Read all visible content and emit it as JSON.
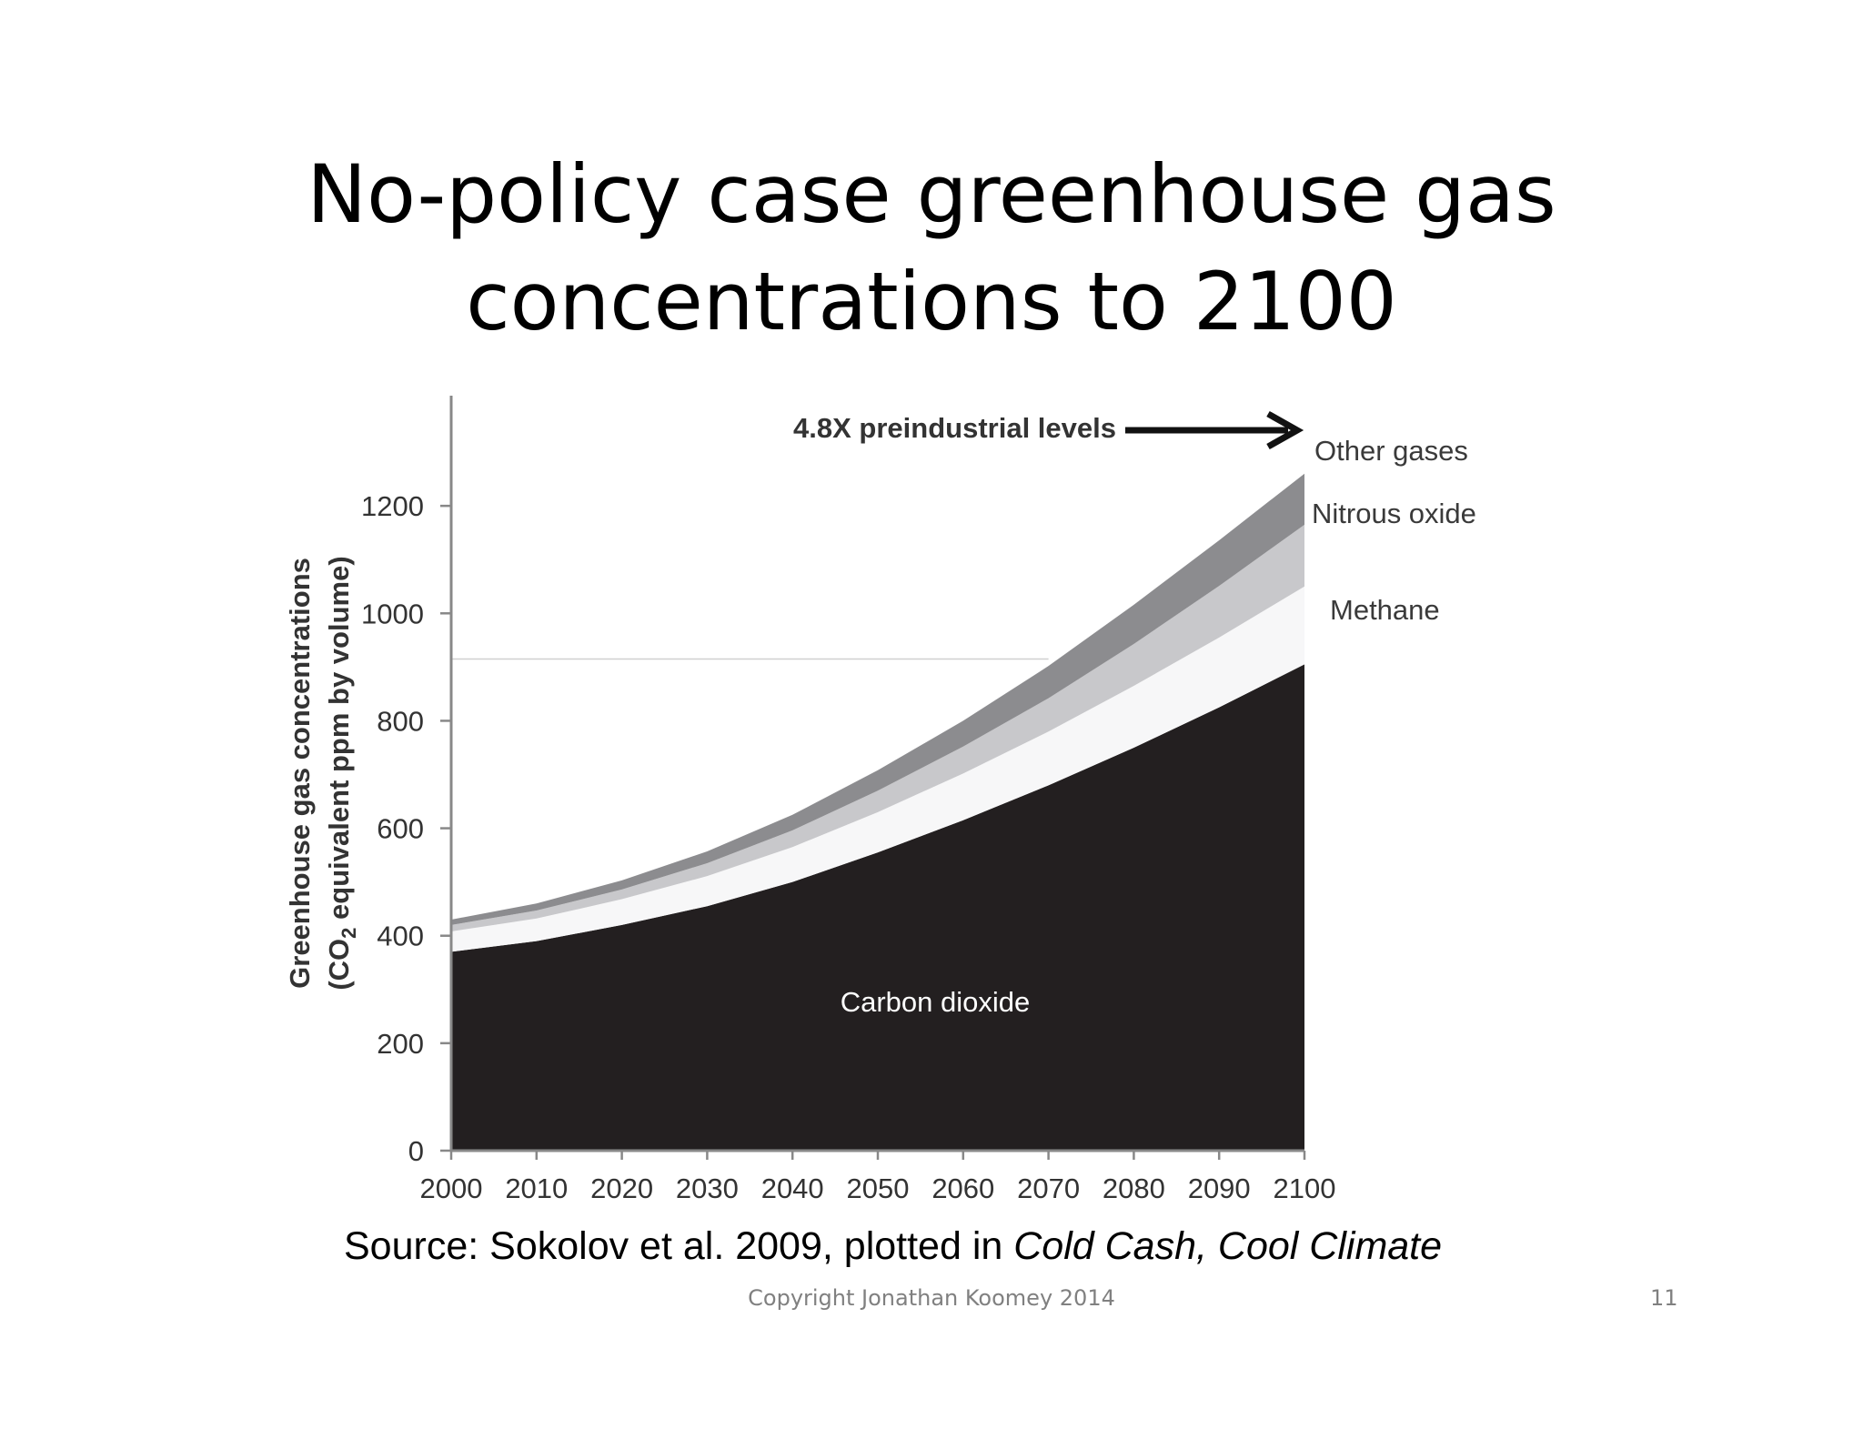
{
  "slide": {
    "title_line1": "No-policy case greenhouse gas",
    "title_line2": "concentrations to 2100",
    "source_prefix": "Source:  Sokolov et al. 2009, plotted in ",
    "source_italic": "Cold Cash, Cool Climate",
    "copyright": "Copyright Jonathan Koomey 2014",
    "page_number": "11"
  },
  "chart_data": {
    "type": "area",
    "stacked": true,
    "x": [
      2000,
      2010,
      2020,
      2030,
      2040,
      2050,
      2060,
      2070,
      2080,
      2090,
      2100
    ],
    "xticks": [
      "2000",
      "2010",
      "2020",
      "2030",
      "2040",
      "2050",
      "2060",
      "2070",
      "2080",
      "2090",
      "2100"
    ],
    "yticks": [
      "0",
      "200",
      "400",
      "600",
      "800",
      "1000",
      "1200"
    ],
    "ylim": [
      0,
      1400
    ],
    "ylabel_line1": "Greenhouse gas concentrations",
    "ylabel_line2_pre": "(CO",
    "ylabel_line2_sub": "2",
    "ylabel_line2_post": " equivalent ppm by volume)",
    "series": [
      {
        "name": "Carbon dioxide",
        "color": "#231f20",
        "label_color": "#ffffff",
        "values": [
          370,
          390,
          420,
          455,
          500,
          555,
          615,
          680,
          750,
          825,
          905
        ]
      },
      {
        "name": "Methane",
        "color": "#f7f7f8",
        "label_color": "#3a3a3a",
        "values": [
          38,
          42,
          48,
          56,
          65,
          75,
          87,
          100,
          115,
          130,
          145
        ]
      },
      {
        "name": "Nitrous oxide",
        "color": "#c8c8cb",
        "label_color": "#3a3a3a",
        "values": [
          12,
          15,
          18,
          24,
          31,
          40,
          50,
          62,
          78,
          96,
          115
        ]
      },
      {
        "name": "Other gases",
        "color": "#8c8c8f",
        "label_color": "#3a3a3a",
        "values": [
          10,
          13,
          17,
          22,
          29,
          38,
          48,
          60,
          73,
          85,
          95
        ]
      }
    ],
    "annotation": {
      "text": "4.8X preindustrial levels",
      "target_x": 2100,
      "target_y": 1340
    },
    "reference_line": {
      "y": 915,
      "x_end": 2070
    },
    "grid": false,
    "legend": "right"
  }
}
